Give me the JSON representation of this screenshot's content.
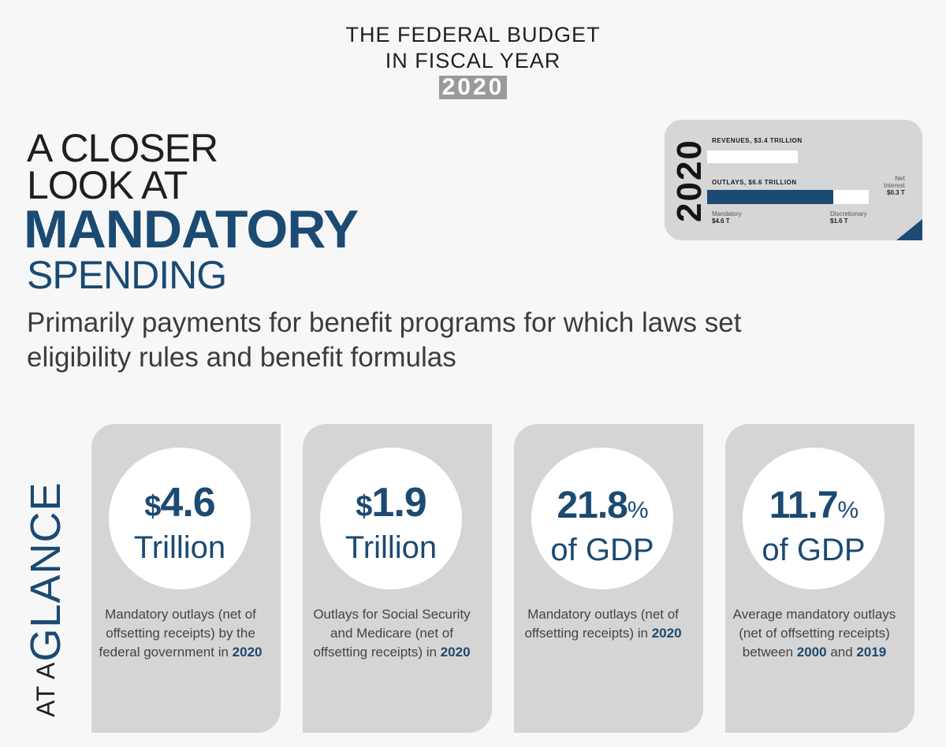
{
  "header": {
    "line1": "THE FEDERAL BUDGET",
    "line2": "IN FISCAL YEAR",
    "year": "2020"
  },
  "title": {
    "line1": "A CLOSER",
    "line2": "LOOK AT",
    "line3": "MANDATORY",
    "line4": "SPENDING",
    "subtitle": "Primarily payments for benefit programs for which laws set eligibility rules and benefit formulas"
  },
  "mini_budget": {
    "year": "2020",
    "revenues_label": "REVENUES, $3.4 TRILLION",
    "outlays_label": "OUTLAYS, $6.6 TRILLION",
    "mandatory_label": "Mandatory",
    "mandatory_value": "$4.6 T",
    "discretionary_label": "Discretionary",
    "discretionary_value": "$1.6 T",
    "net_interest_label_1": "Net",
    "net_interest_label_2": "Interest",
    "net_interest_value": "$0.3 T",
    "colors": {
      "mandatory": "#1b4a72",
      "other": "#ffffff"
    }
  },
  "glance": {
    "prefix": "AT A",
    "word": "GLANCE"
  },
  "cards": [
    {
      "value": "4.6",
      "prefix": "$",
      "suffix": "",
      "unit": "Trillion",
      "desc_pre": "Mandatory outlays (net of offsetting receipts) by the federal government in ",
      "desc_bold": "2020",
      "desc_mid": "",
      "desc_bold2": ""
    },
    {
      "value": "1.9",
      "prefix": "$",
      "suffix": "",
      "unit": "Trillion",
      "desc_pre": "Outlays for Social Security and Medicare (net of offsetting receipts) in ",
      "desc_bold": "2020",
      "desc_mid": "",
      "desc_bold2": ""
    },
    {
      "value": "21.8",
      "prefix": "",
      "suffix": "%",
      "unit": "of GDP",
      "desc_pre": "Mandatory outlays (net of offsetting receipts) in ",
      "desc_bold": "2020",
      "desc_mid": "",
      "desc_bold2": ""
    },
    {
      "value": "11.7",
      "prefix": "",
      "suffix": "%",
      "unit": "of GDP",
      "desc_pre": "Average mandatory outlays (net of offsetting receipts) between ",
      "desc_bold": "2000",
      "desc_mid": " and ",
      "desc_bold2": "2019"
    }
  ],
  "accent_color": "#1b4a72"
}
